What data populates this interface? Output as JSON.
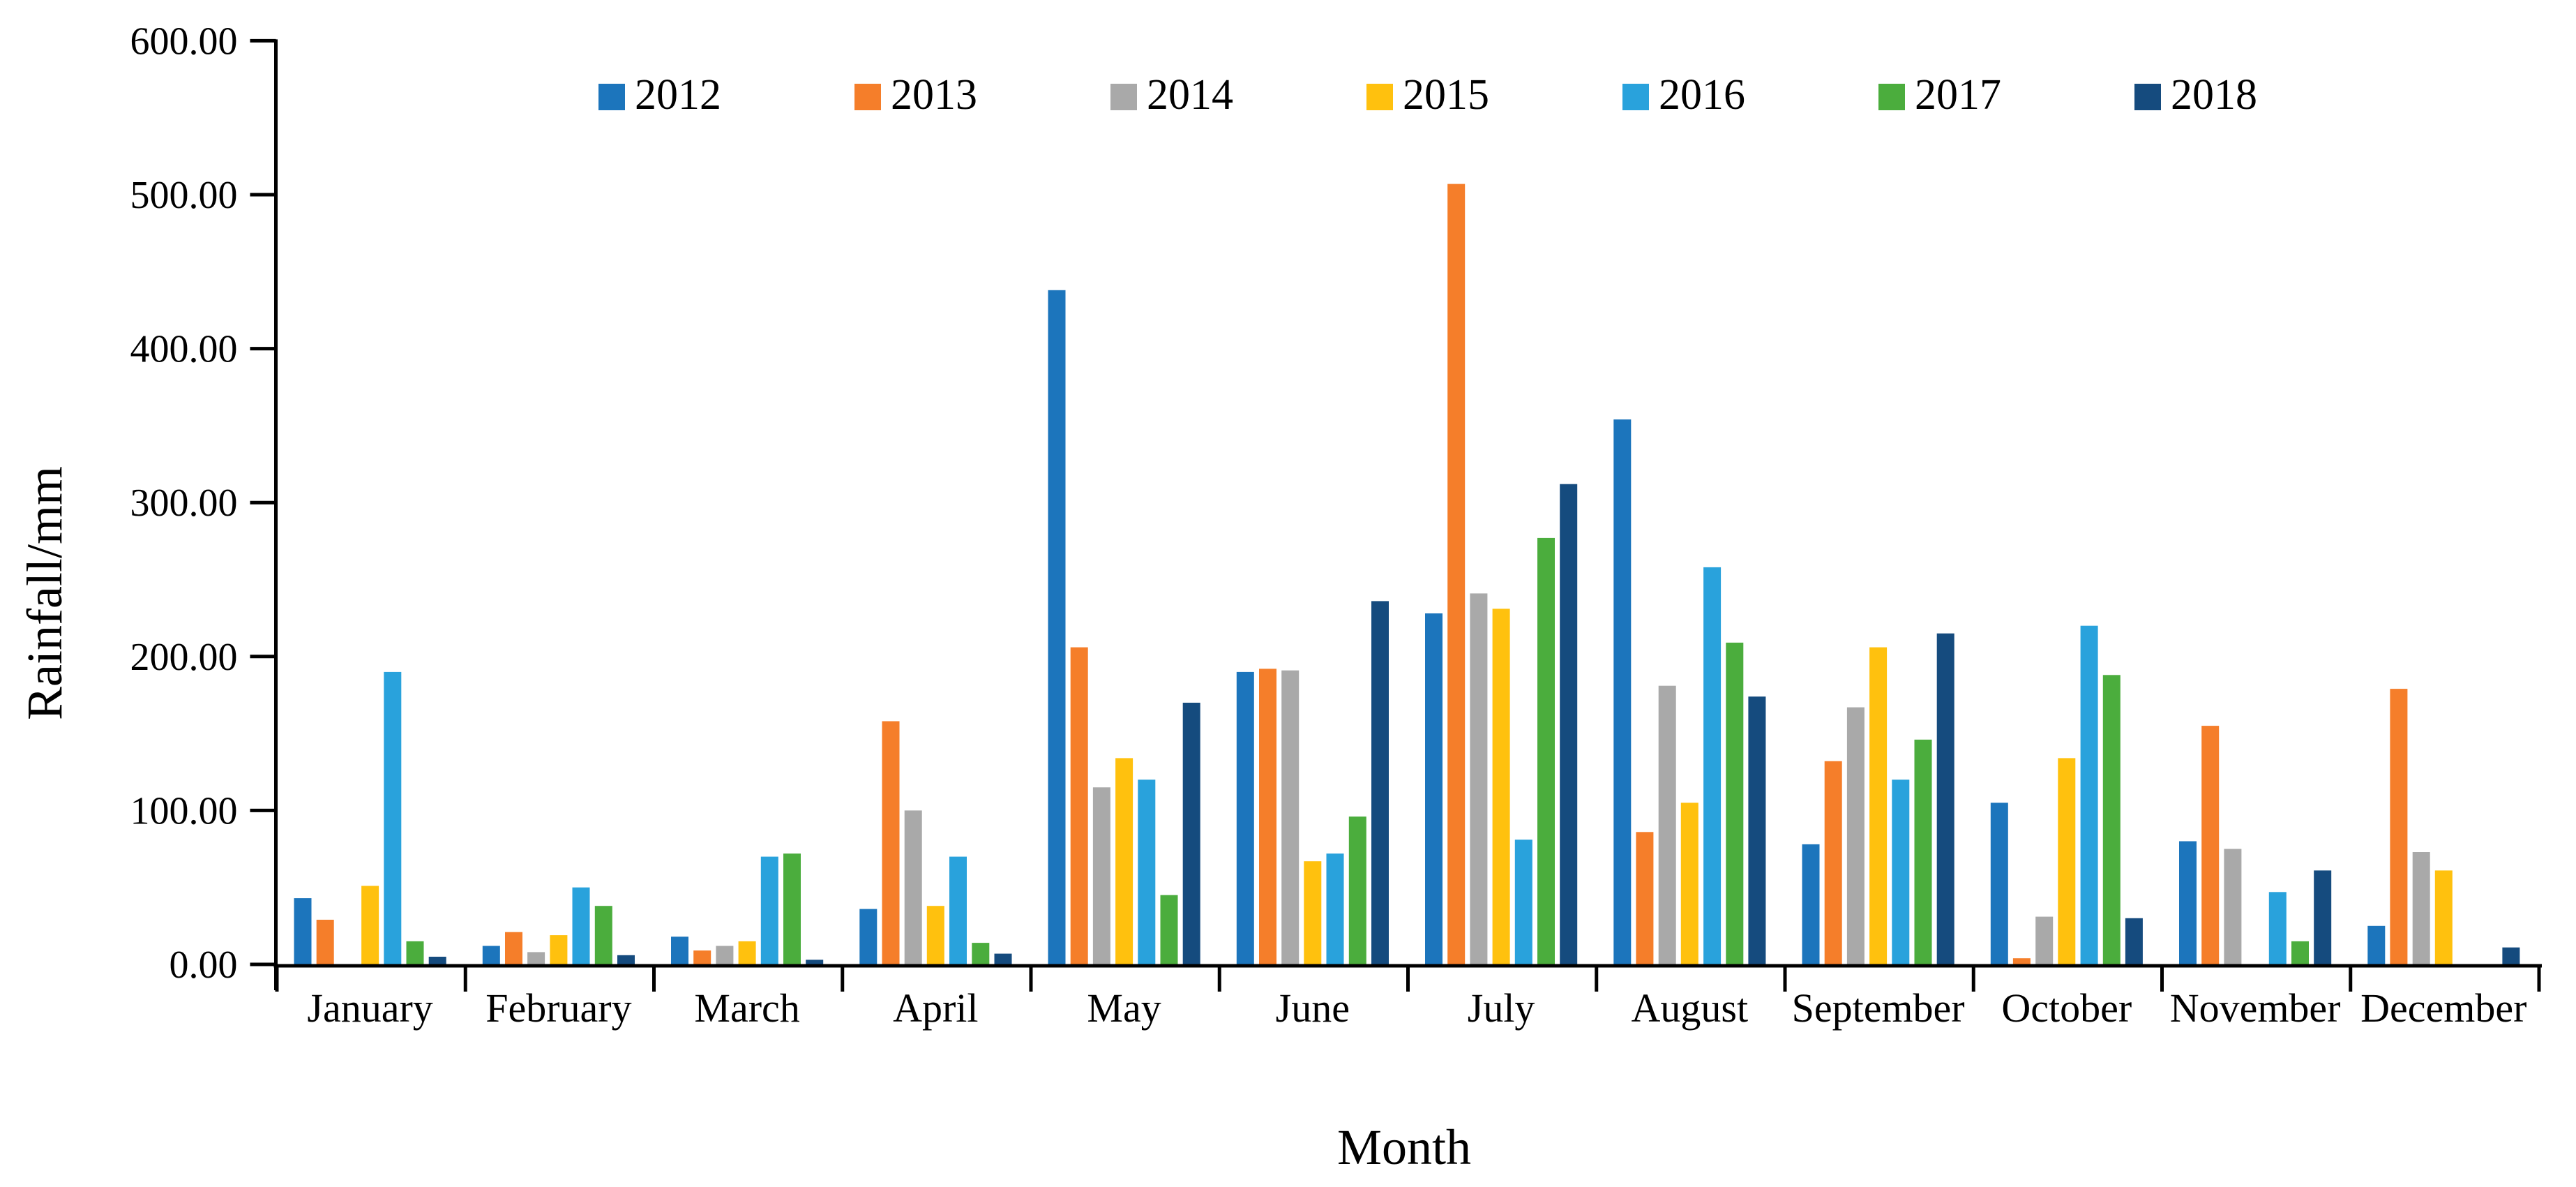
{
  "chart_data": {
    "type": "bar",
    "title": "",
    "xlabel": "Month",
    "ylabel": "Rainfall/mm",
    "categories": [
      "January",
      "February",
      "March",
      "April",
      "May",
      "June",
      "July",
      "August",
      "September",
      "October",
      "November",
      "December"
    ],
    "series": [
      {
        "name": "2012",
        "color": "#1C75BC",
        "values": [
          43,
          12,
          18,
          36,
          438,
          190,
          228,
          354,
          78,
          105,
          80,
          25
        ]
      },
      {
        "name": "2013",
        "color": "#F57E2A",
        "values": [
          29,
          21,
          9,
          158,
          206,
          192,
          507,
          86,
          132,
          4,
          155,
          179
        ]
      },
      {
        "name": "2014",
        "color": "#A9A9A9",
        "values": [
          0,
          8,
          12,
          100,
          115,
          191,
          241,
          181,
          167,
          31,
          75,
          73
        ]
      },
      {
        "name": "2015",
        "color": "#FFC10E",
        "values": [
          51,
          19,
          15,
          38,
          134,
          67,
          231,
          105,
          206,
          134,
          0,
          61
        ]
      },
      {
        "name": "2016",
        "color": "#29A2DC",
        "values": [
          190,
          50,
          70,
          70,
          120,
          72,
          81,
          258,
          120,
          220,
          47,
          0
        ]
      },
      {
        "name": "2017",
        "color": "#4BAD3D",
        "values": [
          15,
          38,
          72,
          14,
          45,
          96,
          277,
          209,
          146,
          188,
          15,
          0
        ]
      },
      {
        "name": "2018",
        "color": "#154B7E",
        "values": [
          5,
          6,
          3,
          7,
          170,
          236,
          312,
          174,
          215,
          30,
          61,
          11
        ]
      }
    ],
    "ylim": [
      0,
      600
    ],
    "ytick_step": 100,
    "ytick_decimals": 2,
    "grid": false,
    "legend_position": "top",
    "axis_color": "#000000",
    "background_color": "#ffffff"
  }
}
